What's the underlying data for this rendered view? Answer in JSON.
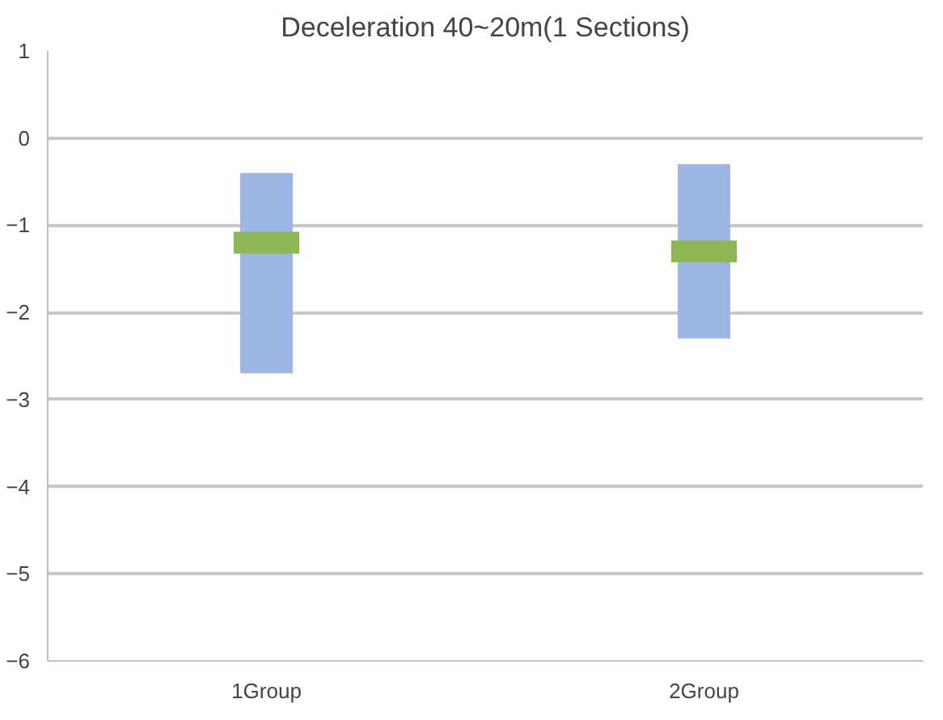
{
  "chart_data": {
    "type": "bar",
    "title": "Deceleration 40~20m(1 Sections)",
    "categories": [
      "1Group",
      "2Group"
    ],
    "series": [
      {
        "color": "#9db6e4",
        "values": [
          2.3,
          2.0
        ],
        "base": [
          -2.7,
          -2.3
        ]
      },
      {
        "type": "scatter",
        "color": "#8db752",
        "x": [
          "1Group",
          "2Group"
        ],
        "values": [
          -1.2,
          -1.3
        ]
      }
    ],
    "ylim": [
      -6,
      1
    ],
    "yticks": [
      -6,
      -5,
      -4,
      -3,
      -2,
      -1,
      0,
      1
    ],
    "grid": "y",
    "marker": "square"
  }
}
